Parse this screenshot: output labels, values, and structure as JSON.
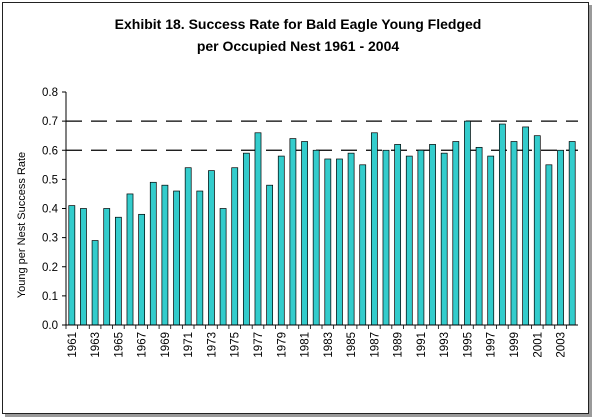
{
  "chart_data": {
    "type": "bar",
    "title_lines": [
      "Exhibit 18.  Success Rate for Bald Eagle Young Fledged",
      "per Occupied Nest 1961 - 2004"
    ],
    "ylabel": "Young per Nest Success Rate",
    "xlabel": "",
    "ylim": [
      0,
      0.8
    ],
    "yticks": [
      "0.0",
      "0.1",
      "0.2",
      "0.3",
      "0.4",
      "0.5",
      "0.6",
      "0.7",
      "0.8"
    ],
    "dashed_gridlines_at": [
      0.6,
      0.7
    ],
    "grid": "dashed lines at 0.6 and 0.7",
    "bar_color": "#33cccc",
    "bar_edge_color": "#000000",
    "legend": "none",
    "categories": [
      1961,
      1962,
      1963,
      1964,
      1965,
      1966,
      1967,
      1968,
      1969,
      1970,
      1971,
      1972,
      1973,
      1974,
      1975,
      1976,
      1977,
      1978,
      1979,
      1980,
      1981,
      1982,
      1983,
      1984,
      1985,
      1986,
      1987,
      1988,
      1989,
      1990,
      1991,
      1992,
      1993,
      1994,
      1995,
      1996,
      1997,
      1998,
      1999,
      2000,
      2001,
      2002,
      2003,
      2004
    ],
    "x_tick_labels": [
      "1961",
      "1963",
      "1965",
      "1967",
      "1969",
      "1971",
      "1973",
      "1975",
      "1977",
      "1979",
      "1981",
      "1983",
      "1985",
      "1987",
      "1989",
      "1991",
      "1993",
      "1995",
      "1997",
      "1999",
      "2001",
      "2003"
    ],
    "values": [
      0.41,
      0.4,
      0.29,
      0.4,
      0.37,
      0.45,
      0.38,
      0.49,
      0.48,
      0.46,
      0.54,
      0.46,
      0.53,
      0.4,
      0.54,
      0.59,
      0.66,
      0.48,
      0.58,
      0.64,
      0.63,
      0.6,
      0.57,
      0.57,
      0.59,
      0.55,
      0.66,
      0.6,
      0.62,
      0.58,
      0.6,
      0.62,
      0.59,
      0.63,
      0.7,
      0.61,
      0.58,
      0.69,
      0.63,
      0.68,
      0.65,
      0.55,
      0.6,
      0.63
    ]
  }
}
